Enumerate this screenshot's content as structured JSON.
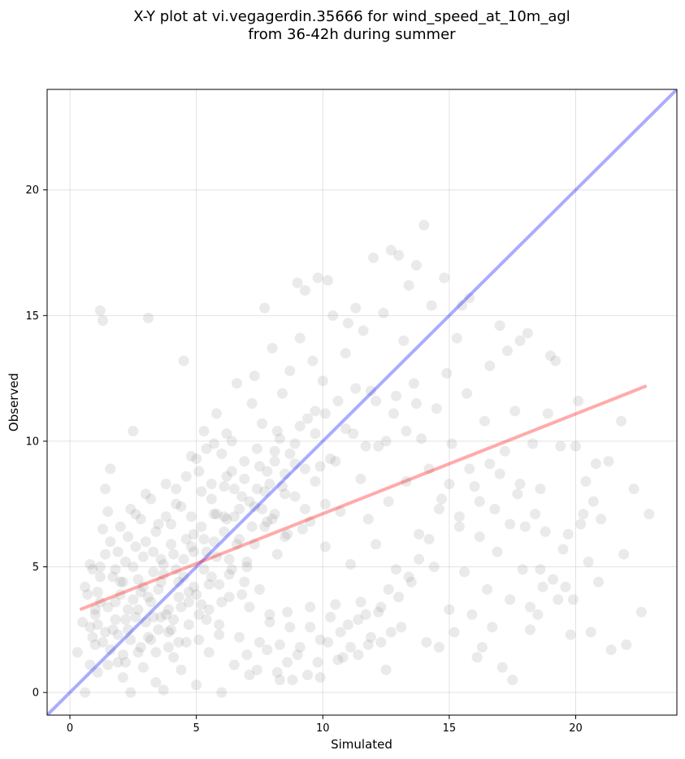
{
  "chart_data": {
    "type": "scatter",
    "title_lines": [
      "X-Y plot at vi.vegagerdin.35666 for wind_speed_at_10m_agl",
      "from 36-42h during summer"
    ],
    "xlabel": "Simulated",
    "ylabel": "Observed",
    "xlim": [
      -0.9,
      24
    ],
    "ylim": [
      -0.9,
      24
    ],
    "xticks": [
      0,
      5,
      10,
      15,
      20
    ],
    "yticks": [
      0,
      5,
      10,
      15,
      20
    ],
    "grid": true,
    "point_color": "#808080",
    "identity_line": {
      "x": [
        -0.9,
        24
      ],
      "y": [
        -0.9,
        24
      ],
      "color": "#0000ff"
    },
    "fit_line": {
      "x": [
        0.4,
        22.8
      ],
      "y": [
        3.3,
        12.2
      ],
      "color": "#ff0000"
    },
    "points": [
      [
        0.6,
        0.0
      ],
      [
        0.8,
        1.1
      ],
      [
        0.9,
        2.2
      ],
      [
        1.0,
        3.1
      ],
      [
        1.1,
        4.0
      ],
      [
        1.2,
        5.0
      ],
      [
        1.3,
        6.5
      ],
      [
        1.2,
        15.2
      ],
      [
        1.3,
        14.8
      ],
      [
        1.4,
        8.1
      ],
      [
        1.5,
        7.2
      ],
      [
        1.6,
        8.9
      ],
      [
        1.7,
        2.5
      ],
      [
        1.8,
        3.6
      ],
      [
        1.9,
        1.2
      ],
      [
        2.0,
        4.4
      ],
      [
        2.1,
        0.6
      ],
      [
        2.2,
        2.9
      ],
      [
        2.3,
        6.2
      ],
      [
        2.4,
        0.0
      ],
      [
        2.5,
        10.4
      ],
      [
        2.6,
        7.1
      ],
      [
        2.7,
        3.3
      ],
      [
        2.8,
        1.8
      ],
      [
        2.9,
        5.4
      ],
      [
        3.0,
        7.9
      ],
      [
        3.1,
        14.9
      ],
      [
        3.2,
        2.1
      ],
      [
        3.3,
        4.8
      ],
      [
        3.4,
        0.4
      ],
      [
        3.5,
        6.7
      ],
      [
        3.6,
        3.0
      ],
      [
        3.7,
        0.1
      ],
      [
        3.8,
        8.3
      ],
      [
        3.9,
        2.4
      ],
      [
        4.0,
        5.9
      ],
      [
        4.1,
        1.4
      ],
      [
        4.2,
        7.5
      ],
      [
        4.3,
        3.8
      ],
      [
        4.4,
        0.9
      ],
      [
        4.5,
        13.2
      ],
      [
        4.6,
        6.1
      ],
      [
        4.7,
        2.7
      ],
      [
        4.8,
        9.4
      ],
      [
        4.9,
        4.2
      ],
      [
        5.0,
        0.3
      ],
      [
        5.1,
        8.8
      ],
      [
        5.2,
        3.5
      ],
      [
        5.3,
        10.4
      ],
      [
        5.4,
        5.6
      ],
      [
        5.5,
        1.6
      ],
      [
        5.6,
        7.7
      ],
      [
        5.7,
        9.9
      ],
      [
        5.8,
        11.1
      ],
      [
        5.9,
        2.3
      ],
      [
        6.0,
        0.0
      ],
      [
        6.1,
        6.4
      ],
      [
        6.2,
        8.6
      ],
      [
        6.3,
        4.7
      ],
      [
        6.4,
        10.0
      ],
      [
        6.5,
        1.1
      ],
      [
        6.6,
        12.3
      ],
      [
        6.7,
        7.3
      ],
      [
        6.8,
        3.9
      ],
      [
        6.9,
        9.2
      ],
      [
        7.0,
        5.2
      ],
      [
        7.1,
        0.7
      ],
      [
        7.2,
        11.5
      ],
      [
        7.3,
        12.6
      ],
      [
        7.4,
        8.1
      ],
      [
        7.5,
        4.1
      ],
      [
        7.6,
        10.7
      ],
      [
        7.7,
        15.3
      ],
      [
        7.8,
        6.8
      ],
      [
        7.9,
        2.8
      ],
      [
        8.0,
        13.7
      ],
      [
        8.1,
        9.6
      ],
      [
        8.2,
        5.5
      ],
      [
        8.3,
        0.5
      ],
      [
        8.4,
        11.9
      ],
      [
        8.5,
        7.9
      ],
      [
        8.6,
        3.2
      ],
      [
        8.7,
        12.8
      ],
      [
        8.8,
        0.5
      ],
      [
        8.9,
        9.1
      ],
      [
        9.0,
        16.3
      ],
      [
        9.1,
        14.1
      ],
      [
        9.2,
        6.5
      ],
      [
        9.3,
        16.0
      ],
      [
        9.4,
        10.9
      ],
      [
        9.5,
        2.6
      ],
      [
        9.6,
        13.2
      ],
      [
        9.7,
        8.4
      ],
      [
        9.8,
        16.5
      ],
      [
        9.9,
        0.6
      ],
      [
        10.0,
        12.4
      ],
      [
        10.1,
        5.8
      ],
      [
        10.2,
        16.4
      ],
      [
        10.3,
        9.3
      ],
      [
        10.4,
        15.0
      ],
      [
        10.5,
        3.5
      ],
      [
        10.6,
        11.6
      ],
      [
        10.7,
        7.2
      ],
      [
        10.8,
        1.4
      ],
      [
        10.9,
        13.5
      ],
      [
        11.0,
        14.7
      ],
      [
        11.1,
        5.1
      ],
      [
        11.2,
        10.3
      ],
      [
        11.3,
        15.3
      ],
      [
        11.4,
        1.5
      ],
      [
        11.5,
        8.5
      ],
      [
        11.6,
        14.4
      ],
      [
        11.7,
        3.1
      ],
      [
        11.8,
        6.9
      ],
      [
        11.9,
        12.0
      ],
      [
        12.0,
        17.3
      ],
      [
        12.1,
        5.9
      ],
      [
        12.2,
        9.8
      ],
      [
        12.3,
        2.0
      ],
      [
        12.4,
        15.1
      ],
      [
        12.5,
        0.9
      ],
      [
        12.6,
        7.6
      ],
      [
        12.7,
        17.6
      ],
      [
        12.8,
        11.1
      ],
      [
        12.9,
        4.9
      ],
      [
        13.0,
        17.4
      ],
      [
        13.1,
        2.6
      ],
      [
        13.2,
        14.0
      ],
      [
        13.3,
        8.4
      ],
      [
        13.4,
        16.2
      ],
      [
        13.5,
        4.4
      ],
      [
        13.6,
        12.3
      ],
      [
        13.7,
        17.0
      ],
      [
        13.8,
        6.3
      ],
      [
        13.9,
        10.1
      ],
      [
        14.0,
        18.6
      ],
      [
        14.1,
        2.0
      ],
      [
        14.2,
        8.9
      ],
      [
        14.3,
        15.4
      ],
      [
        14.4,
        5.0
      ],
      [
        14.5,
        11.3
      ],
      [
        14.6,
        1.8
      ],
      [
        14.7,
        7.7
      ],
      [
        14.8,
        16.5
      ],
      [
        14.9,
        12.7
      ],
      [
        15.0,
        3.3
      ],
      [
        15.1,
        9.9
      ],
      [
        15.2,
        2.4
      ],
      [
        15.3,
        14.1
      ],
      [
        15.4,
        6.6
      ],
      [
        15.5,
        15.4
      ],
      [
        15.6,
        4.8
      ],
      [
        15.7,
        11.9
      ],
      [
        15.8,
        15.7
      ],
      [
        15.9,
        3.1
      ],
      [
        16.0,
        8.2
      ],
      [
        16.1,
        1.4
      ],
      [
        16.2,
        6.2
      ],
      [
        16.3,
        1.8
      ],
      [
        16.4,
        10.8
      ],
      [
        16.5,
        4.1
      ],
      [
        16.6,
        13.0
      ],
      [
        16.7,
        2.6
      ],
      [
        16.8,
        7.3
      ],
      [
        16.9,
        5.6
      ],
      [
        17.0,
        14.6
      ],
      [
        17.1,
        1.0
      ],
      [
        17.2,
        9.6
      ],
      [
        17.3,
        13.6
      ],
      [
        17.4,
        3.7
      ],
      [
        17.5,
        0.5
      ],
      [
        17.6,
        11.2
      ],
      [
        17.7,
        7.9
      ],
      [
        17.8,
        14.0
      ],
      [
        17.9,
        4.9
      ],
      [
        18.0,
        6.6
      ],
      [
        18.1,
        14.3
      ],
      [
        18.2,
        2.5
      ],
      [
        18.3,
        9.9
      ],
      [
        18.4,
        7.1
      ],
      [
        18.5,
        3.1
      ],
      [
        18.6,
        8.1
      ],
      [
        18.7,
        4.2
      ],
      [
        18.8,
        6.4
      ],
      [
        18.9,
        11.1
      ],
      [
        19.0,
        13.4
      ],
      [
        19.1,
        4.5
      ],
      [
        19.2,
        13.2
      ],
      [
        19.3,
        3.7
      ],
      [
        19.4,
        9.8
      ],
      [
        19.5,
        5.7
      ],
      [
        19.6,
        4.2
      ],
      [
        19.7,
        6.3
      ],
      [
        19.8,
        2.3
      ],
      [
        19.9,
        3.7
      ],
      [
        20.0,
        9.8
      ],
      [
        20.1,
        11.6
      ],
      [
        20.2,
        6.7
      ],
      [
        20.3,
        7.1
      ],
      [
        20.4,
        8.4
      ],
      [
        20.5,
        5.2
      ],
      [
        20.6,
        2.4
      ],
      [
        20.7,
        7.6
      ],
      [
        20.8,
        9.1
      ],
      [
        20.9,
        4.4
      ],
      [
        21.0,
        6.9
      ],
      [
        21.3,
        9.2
      ],
      [
        21.4,
        1.7
      ],
      [
        21.8,
        10.8
      ],
      [
        21.9,
        5.5
      ],
      [
        22.0,
        1.9
      ],
      [
        22.3,
        8.1
      ],
      [
        22.6,
        3.2
      ],
      [
        22.9,
        7.1
      ],
      [
        0.3,
        1.6
      ],
      [
        0.5,
        2.8
      ],
      [
        0.7,
        3.9
      ],
      [
        0.9,
        4.9
      ],
      [
        1.1,
        0.8
      ],
      [
        1.3,
        2.0
      ],
      [
        1.5,
        3.4
      ],
      [
        1.7,
        4.6
      ],
      [
        1.9,
        5.6
      ],
      [
        2.1,
        1.5
      ],
      [
        2.3,
        2.5
      ],
      [
        2.5,
        3.7
      ],
      [
        2.7,
        4.5
      ],
      [
        2.9,
        1.0
      ],
      [
        3.1,
        2.2
      ],
      [
        3.3,
        3.0
      ],
      [
        3.5,
        4.1
      ],
      [
        3.7,
        5.1
      ],
      [
        3.9,
        1.8
      ],
      [
        4.1,
        2.9
      ],
      [
        4.3,
        4.4
      ],
      [
        4.5,
        5.3
      ],
      [
        4.7,
        3.6
      ],
      [
        4.9,
        6.3
      ],
      [
        5.1,
        2.1
      ],
      [
        5.3,
        4.9
      ],
      [
        5.5,
        3.3
      ],
      [
        5.7,
        6.0
      ],
      [
        5.9,
        4.3
      ],
      [
        6.1,
        7.0
      ],
      [
        6.3,
        5.3
      ],
      [
        6.5,
        8.1
      ],
      [
        6.7,
        6.1
      ],
      [
        6.9,
        4.4
      ],
      [
        7.1,
        7.6
      ],
      [
        7.3,
        5.9
      ],
      [
        7.5,
        9.0
      ],
      [
        7.7,
        6.6
      ],
      [
        7.9,
        8.3
      ],
      [
        8.1,
        7.1
      ],
      [
        8.3,
        10.1
      ],
      [
        8.5,
        6.2
      ],
      [
        8.7,
        9.5
      ],
      [
        8.9,
        7.8
      ],
      [
        9.1,
        10.6
      ],
      [
        9.3,
        8.9
      ],
      [
        9.5,
        6.8
      ],
      [
        9.7,
        11.2
      ],
      [
        9.9,
        9.0
      ],
      [
        10.1,
        7.5
      ],
      [
        0.8,
        2.6
      ],
      [
        1.0,
        1.9
      ],
      [
        1.2,
        3.6
      ],
      [
        1.4,
        2.4
      ],
      [
        1.6,
        1.7
      ],
      [
        1.8,
        2.9
      ],
      [
        2.0,
        3.9
      ],
      [
        2.2,
        1.2
      ],
      [
        2.4,
        2.1
      ],
      [
        2.6,
        3.0
      ],
      [
        2.8,
        4.0
      ],
      [
        3.0,
        2.8
      ],
      [
        3.2,
        3.6
      ],
      [
        3.4,
        1.6
      ],
      [
        3.6,
        4.4
      ],
      [
        3.8,
        3.1
      ],
      [
        4.0,
        2.5
      ],
      [
        4.2,
        4.9
      ],
      [
        4.4,
        3.4
      ],
      [
        4.6,
        2.0
      ],
      [
        4.8,
        5.8
      ],
      [
        5.0,
        3.9
      ],
      [
        5.2,
        6.6
      ],
      [
        5.4,
        2.9
      ],
      [
        5.6,
        4.6
      ],
      [
        5.8,
        5.4
      ],
      [
        6.0,
        3.6
      ],
      [
        6.2,
        6.9
      ],
      [
        6.4,
        4.9
      ],
      [
        6.6,
        5.9
      ],
      [
        6.8,
        7.8
      ],
      [
        7.0,
        5.0
      ],
      [
        7.2,
        6.6
      ],
      [
        7.4,
        9.7
      ],
      [
        7.6,
        7.3
      ],
      [
        7.8,
        8.8
      ],
      [
        8.0,
        6.9
      ],
      [
        8.2,
        10.4
      ],
      [
        8.4,
        8.2
      ],
      [
        8.6,
        6.3
      ],
      [
        0.6,
        4.2
      ],
      [
        0.8,
        5.1
      ],
      [
        1.0,
        3.3
      ],
      [
        1.2,
        4.6
      ],
      [
        1.4,
        5.5
      ],
      [
        1.6,
        6.0
      ],
      [
        1.8,
        4.9
      ],
      [
        2.0,
        6.6
      ],
      [
        2.2,
        5.2
      ],
      [
        2.4,
        7.3
      ],
      [
        2.6,
        5.8
      ],
      [
        2.8,
        6.9
      ],
      [
        3.0,
        6.0
      ],
      [
        3.2,
        7.7
      ],
      [
        3.4,
        6.4
      ],
      [
        3.6,
        5.3
      ],
      [
        3.8,
        7.0
      ],
      [
        4.0,
        6.7
      ],
      [
        4.2,
        8.1
      ],
      [
        4.4,
        7.4
      ],
      [
        4.6,
        8.6
      ],
      [
        4.8,
        7.0
      ],
      [
        5.0,
        9.3
      ],
      [
        5.2,
        8.0
      ],
      [
        5.4,
        9.7
      ],
      [
        5.6,
        8.3
      ],
      [
        5.8,
        7.1
      ],
      [
        6.0,
        9.5
      ],
      [
        6.2,
        10.3
      ],
      [
        6.4,
        8.8
      ],
      [
        1.1,
        2.7
      ],
      [
        1.5,
        1.1
      ],
      [
        1.9,
        2.3
      ],
      [
        2.3,
        3.3
      ],
      [
        2.7,
        1.6
      ],
      [
        3.1,
        3.8
      ],
      [
        3.5,
        2.5
      ],
      [
        3.9,
        3.3
      ],
      [
        4.3,
        2.0
      ],
      [
        4.7,
        4.0
      ],
      [
        5.1,
        3.1
      ],
      [
        5.5,
        4.3
      ],
      [
        5.9,
        2.7
      ],
      [
        6.3,
        3.8
      ],
      [
        6.7,
        2.2
      ],
      [
        7.1,
        3.4
      ],
      [
        7.5,
        2.0
      ],
      [
        7.9,
        3.1
      ],
      [
        8.3,
        1.9
      ],
      [
        8.7,
        2.6
      ],
      [
        9.1,
        1.8
      ],
      [
        9.5,
        3.4
      ],
      [
        9.9,
        2.1
      ],
      [
        10.3,
        3.0
      ],
      [
        10.7,
        2.4
      ],
      [
        11.1,
        1.8
      ],
      [
        11.5,
        3.6
      ],
      [
        11.9,
        2.2
      ],
      [
        12.3,
        3.4
      ],
      [
        12.7,
        2.4
      ],
      [
        2.1,
        4.4
      ],
      [
        2.5,
        5.0
      ],
      [
        2.9,
        4.2
      ],
      [
        3.3,
        5.6
      ],
      [
        3.7,
        4.7
      ],
      [
        4.1,
        5.5
      ],
      [
        4.5,
        4.6
      ],
      [
        4.9,
        5.6
      ],
      [
        5.3,
        6.1
      ],
      [
        5.7,
        7.1
      ],
      [
        6.1,
        8.2
      ],
      [
        6.5,
        7.0
      ],
      [
        6.9,
        8.5
      ],
      [
        7.3,
        7.4
      ],
      [
        7.7,
        8.0
      ],
      [
        8.1,
        9.2
      ],
      [
        8.5,
        8.7
      ],
      [
        8.9,
        9.9
      ],
      [
        9.3,
        7.3
      ],
      [
        9.7,
        10.3
      ],
      [
        10.1,
        11.1
      ],
      [
        10.5,
        9.2
      ],
      [
        10.9,
        10.5
      ],
      [
        11.3,
        12.1
      ],
      [
        11.7,
        9.8
      ],
      [
        12.1,
        11.6
      ],
      [
        12.5,
        10.0
      ],
      [
        12.9,
        11.8
      ],
      [
        13.3,
        10.4
      ],
      [
        13.7,
        11.5
      ],
      [
        7.0,
        1.5
      ],
      [
        7.4,
        0.9
      ],
      [
        7.8,
        1.7
      ],
      [
        8.2,
        0.8
      ],
      [
        8.6,
        1.2
      ],
      [
        9.0,
        1.5
      ],
      [
        9.4,
        0.7
      ],
      [
        9.8,
        1.2
      ],
      [
        10.2,
        2.0
      ],
      [
        10.6,
        1.3
      ],
      [
        11.0,
        2.7
      ],
      [
        11.4,
        2.9
      ],
      [
        11.8,
        1.9
      ],
      [
        12.2,
        3.2
      ],
      [
        12.6,
        4.1
      ],
      [
        13.0,
        3.8
      ],
      [
        13.4,
        4.6
      ],
      [
        13.8,
        5.3
      ],
      [
        14.2,
        6.1
      ],
      [
        14.6,
        7.3
      ],
      [
        15.0,
        8.3
      ],
      [
        15.4,
        7.0
      ],
      [
        15.8,
        8.9
      ],
      [
        16.2,
        7.6
      ],
      [
        16.6,
        9.1
      ],
      [
        17.0,
        8.7
      ],
      [
        17.4,
        6.7
      ],
      [
        17.8,
        8.3
      ],
      [
        18.2,
        3.4
      ],
      [
        18.6,
        4.9
      ]
    ]
  }
}
